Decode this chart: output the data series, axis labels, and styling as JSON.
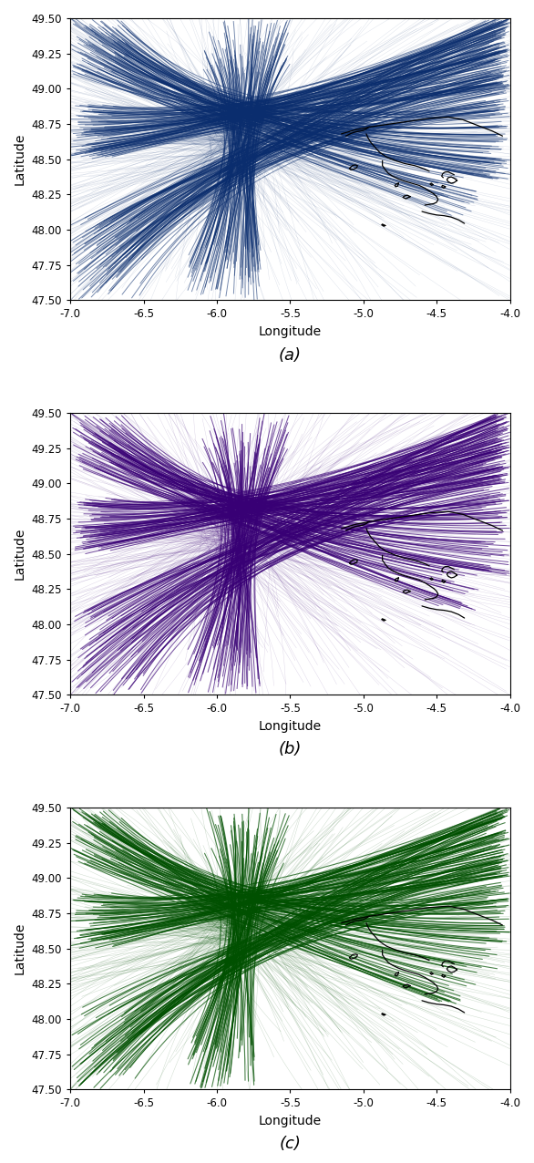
{
  "xlim": [
    -7.0,
    -4.0
  ],
  "ylim": [
    47.5,
    49.5
  ],
  "xlabel": "Longitude",
  "ylabel": "Latitude",
  "xticks": [
    -7.0,
    -6.5,
    -6.0,
    -5.5,
    -5.0,
    -4.5,
    -4.0
  ],
  "yticks": [
    47.5,
    47.75,
    48.0,
    48.25,
    48.5,
    48.75,
    49.0,
    49.25,
    49.5
  ],
  "labels": [
    "(a)",
    "(b)",
    "(c)"
  ],
  "colors_a": "#0a2d6e",
  "colors_b": "#380075",
  "colors_c": "#005000",
  "background": "#ffffff",
  "coast_color": "#000000",
  "figsize": [
    5.86,
    12.76
  ],
  "dpi": 100,
  "hub_lon": -5.85,
  "hub_lat": 48.65
}
